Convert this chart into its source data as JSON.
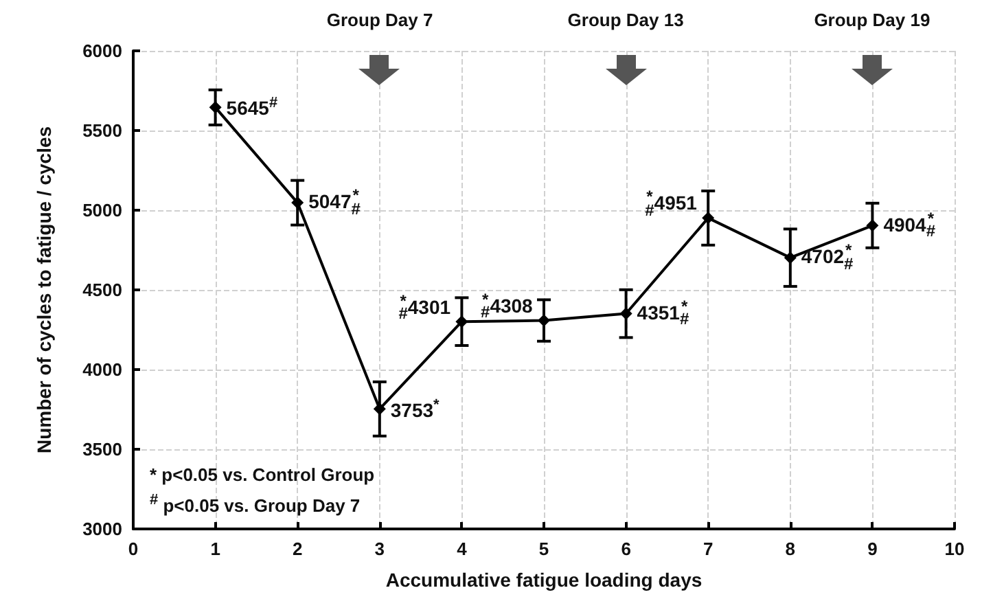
{
  "chart_data": {
    "type": "line",
    "xlabel": "Accumulative fatigue loading days",
    "ylabel": "Number of cycles to fatigue / cycles",
    "x": [
      1,
      2,
      3,
      4,
      5,
      6,
      7,
      8,
      9
    ],
    "series": [
      {
        "color": "#000000",
        "values": [
          5645,
          5047,
          3753,
          4301,
          4308,
          4351,
          4951,
          4702,
          4904
        ],
        "errors": [
          110,
          140,
          170,
          150,
          130,
          150,
          170,
          180,
          140
        ],
        "value_labels": [
          "5645$^{#}$",
          "5047$^{*}$$_{#}$",
          "3753$^{*}$",
          "$^{*}$$_{#}$4301",
          "$^{*}$$_{#}$4308",
          "4351$^{*}$$_{#}$",
          "$^{*}$$_{#}$4951",
          "4702$^{*}$$_{#}$",
          "4904$^{*}$$_{#}$"
        ]
      }
    ],
    "xlim": [
      0,
      10
    ],
    "xticks": [
      0,
      1,
      2,
      3,
      4,
      5,
      6,
      7,
      8,
      9,
      10
    ],
    "ylim": [
      3000,
      6000
    ],
    "yticks": [
      3000,
      3500,
      4000,
      4500,
      5000,
      5500,
      6000
    ],
    "grid": true,
    "marker": "diamond",
    "line_style": "solid",
    "annotations": [
      "Group Day 7",
      "Group Day 13",
      "Group Day 19",
      "* p<0.05 vs. Control Group",
      "$^{#}$ p<0.05 vs. Group Day 7"
    ]
  }
}
